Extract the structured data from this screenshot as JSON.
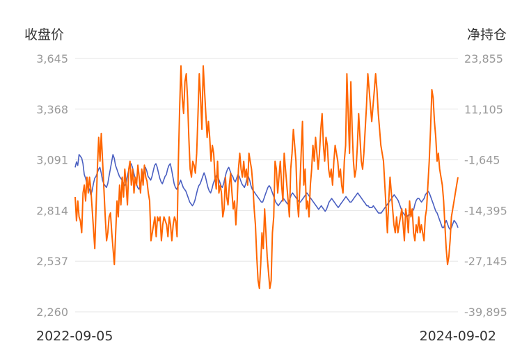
{
  "chart_data": {
    "type": "line",
    "left_axis": {
      "title": "收盘价",
      "ticks": [
        "3,645",
        "3,368",
        "3,091",
        "2,814",
        "2,537",
        "2,260"
      ],
      "range": [
        2260,
        3645
      ]
    },
    "right_axis": {
      "title": "净持仓",
      "ticks": [
        "23,855",
        "11,105",
        "-1,645",
        "-14,395",
        "-27,145",
        "-39,895"
      ],
      "range": [
        -39895,
        23855
      ]
    },
    "x_labels": {
      "start": "2022-09-05",
      "end": "2024-09-02"
    },
    "grid": true,
    "series": [
      {
        "axis": "left",
        "color": "#4a5fc1",
        "values": [
          3050,
          3080,
          3060,
          3120,
          3110,
          3100,
          3070,
          3010,
          2990,
          2960,
          2940,
          2930,
          2900,
          2920,
          2960,
          2990,
          3000,
          3020,
          3040,
          3050,
          3020,
          2980,
          2960,
          2950,
          2940,
          2960,
          3000,
          3040,
          3080,
          3120,
          3100,
          3060,
          3040,
          3020,
          3000,
          2990,
          2980,
          2960,
          2950,
          2960,
          3000,
          3030,
          3060,
          3070,
          3050,
          3020,
          2990,
          2960,
          2940,
          2930,
          2950,
          2980,
          3010,
          3040,
          3050,
          3030,
          3000,
          2990,
          2980,
          3000,
          3030,
          3060,
          3070,
          3050,
          3020,
          2990,
          2970,
          2960,
          2980,
          3000,
          3010,
          3040,
          3060,
          3070,
          3040,
          3000,
          2960,
          2940,
          2930,
          2950,
          2960,
          2980,
          2960,
          2940,
          2930,
          2920,
          2900,
          2880,
          2860,
          2850,
          2840,
          2850,
          2870,
          2900,
          2930,
          2950,
          2960,
          2980,
          3000,
          3020,
          3000,
          2970,
          2940,
          2920,
          2910,
          2930,
          2960,
          2980,
          3000,
          3010,
          2990,
          2970,
          2950,
          2940,
          2960,
          2990,
          3020,
          3040,
          3050,
          3030,
          3010,
          3000,
          2980,
          2970,
          2990,
          3010,
          3000,
          2980,
          2960,
          2950,
          2940,
          2960,
          2990,
          3000,
          2980,
          2950,
          2930,
          2920,
          2910,
          2900,
          2890,
          2880,
          2870,
          2860,
          2860,
          2880,
          2900,
          2920,
          2940,
          2950,
          2940,
          2920,
          2900,
          2880,
          2860,
          2850,
          2840,
          2850,
          2860,
          2870,
          2880,
          2870,
          2860,
          2850,
          2860,
          2880,
          2900,
          2910,
          2900,
          2890,
          2880,
          2870,
          2860,
          2860,
          2870,
          2880,
          2890,
          2900,
          2910,
          2900,
          2890,
          2880,
          2870,
          2860,
          2850,
          2840,
          2830,
          2820,
          2830,
          2840,
          2830,
          2820,
          2810,
          2820,
          2840,
          2860,
          2870,
          2880,
          2870,
          2860,
          2850,
          2840,
          2830,
          2840,
          2850,
          2860,
          2870,
          2880,
          2890,
          2880,
          2870,
          2860,
          2860,
          2870,
          2880,
          2890,
          2900,
          2910,
          2900,
          2890,
          2880,
          2870,
          2860,
          2850,
          2840,
          2840,
          2830,
          2830,
          2830,
          2840,
          2830,
          2820,
          2810,
          2800,
          2800,
          2800,
          2810,
          2820,
          2830,
          2840,
          2850,
          2860,
          2870,
          2880,
          2890,
          2900,
          2890,
          2880,
          2870,
          2850,
          2830,
          2810,
          2800,
          2790,
          2780,
          2780,
          2790,
          2790,
          2800,
          2810,
          2820,
          2850,
          2870,
          2880,
          2880,
          2870,
          2860,
          2870,
          2880,
          2900,
          2910,
          2920,
          2910,
          2890,
          2870,
          2850,
          2830,
          2810,
          2800,
          2780,
          2760,
          2740,
          2720,
          2720,
          2740,
          2760,
          2740,
          2720,
          2710,
          2720,
          2740,
          2760,
          2750,
          2740,
          2720
        ]
      },
      {
        "axis": "right",
        "color": "#ff6600",
        "values": [
          -11000,
          -17000,
          -12000,
          -16000,
          -17000,
          -20000,
          -10000,
          -8000,
          -12000,
          -6000,
          -10000,
          -6000,
          -9000,
          -14000,
          -19000,
          -24000,
          -14000,
          -4000,
          4000,
          -2000,
          5000,
          -2000,
          -9000,
          -16000,
          -22000,
          -20000,
          -16000,
          -15000,
          -20000,
          -24000,
          -28000,
          -20000,
          -12000,
          -16000,
          -8000,
          -13000,
          -6000,
          -11000,
          -4000,
          -8000,
          -13000,
          -4000,
          -2000,
          -8000,
          -4000,
          -10000,
          -6000,
          -8000,
          -3000,
          -6000,
          -10000,
          -4000,
          -8000,
          -3000,
          -6000,
          -7000,
          -10000,
          -12000,
          -22000,
          -20000,
          -18000,
          -16000,
          -21000,
          -16000,
          -17000,
          -16000,
          -22000,
          -18000,
          -16000,
          -17000,
          -18000,
          -21000,
          -16000,
          -18000,
          -22000,
          -18000,
          -16000,
          -17000,
          -21000,
          -2000,
          12000,
          22000,
          14000,
          10000,
          18000,
          20000,
          14000,
          4000,
          -4000,
          -6000,
          -2000,
          -3000,
          -5000,
          0,
          10000,
          20000,
          14000,
          6000,
          22000,
          16000,
          10000,
          4000,
          8000,
          4000,
          -2000,
          2000,
          0,
          -6000,
          -9000,
          -2000,
          -10000,
          -8000,
          -10000,
          -16000,
          -14000,
          -6000,
          -11000,
          -13000,
          -8000,
          -5000,
          -10000,
          -14000,
          -12000,
          -18000,
          -12000,
          -4000,
          0,
          -4000,
          -6000,
          -2000,
          -6000,
          -4000,
          -8000,
          0,
          -2000,
          -4000,
          -8000,
          -14000,
          -18000,
          -26000,
          -32000,
          -34000,
          -28000,
          -20000,
          -24000,
          -14000,
          -20000,
          -26000,
          -30000,
          -34000,
          -32000,
          -20000,
          -16000,
          -2000,
          -4000,
          -10000,
          -6000,
          -2000,
          -8000,
          -12000,
          0,
          -4000,
          -8000,
          -12000,
          -16000,
          -4000,
          0,
          6000,
          2000,
          -2000,
          -12000,
          -16000,
          -8000,
          0,
          8000,
          -8000,
          -4000,
          -14000,
          -12000,
          -16000,
          -8000,
          -4000,
          2000,
          -2000,
          4000,
          0,
          -4000,
          0,
          6000,
          10000,
          2000,
          -2000,
          4000,
          2000,
          -4000,
          -6000,
          -4000,
          -8000,
          -2000,
          2000,
          0,
          -2000,
          -6000,
          -4000,
          -8000,
          -10000,
          -2000,
          2000,
          20000,
          10000,
          0,
          18000,
          6000,
          -2000,
          -6000,
          -4000,
          2000,
          10000,
          4000,
          -2000,
          -4000,
          0,
          6000,
          12000,
          20000,
          16000,
          12000,
          8000,
          12000,
          16000,
          20000,
          16000,
          10000,
          6000,
          2000,
          0,
          -2000,
          -8000,
          -14000,
          -20000,
          -12000,
          -6000,
          -10000,
          -14000,
          -18000,
          -20000,
          -16000,
          -20000,
          -18000,
          -16000,
          -14000,
          -18000,
          -22000,
          -14000,
          -16000,
          -20000,
          -12000,
          -16000,
          -14000,
          -20000,
          -22000,
          -18000,
          -20000,
          -16000,
          -20000,
          -18000,
          -20000,
          -22000,
          -16000,
          -14000,
          -8000,
          -2000,
          6000,
          16000,
          14000,
          8000,
          4000,
          -2000,
          0,
          -4000,
          -6000,
          -8000,
          -12000,
          -18000,
          -24000,
          -28000,
          -26000,
          -22000,
          -16000,
          -14000,
          -12000,
          -10000,
          -8000,
          -6000
        ]
      }
    ]
  }
}
